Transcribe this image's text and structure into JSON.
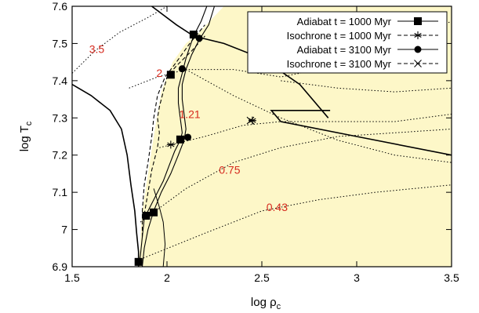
{
  "chart_data": {
    "type": "line",
    "xlabel": "log ρ",
    "xlabel_sub": "c",
    "ylabel": "log T",
    "ylabel_sub": "c",
    "xlim": [
      1.5,
      3.5
    ],
    "ylim": [
      6.9,
      7.6
    ],
    "xticks": [
      1.5,
      2,
      2.5,
      3,
      3.5
    ],
    "xtick_labels": [
      "1.5",
      "2",
      "2.5",
      "3",
      "3.5"
    ],
    "yticks": [
      6.9,
      7.0,
      7.1,
      7.2,
      7.3,
      7.4,
      7.5,
      7.6
    ],
    "ytick_labels": [
      "6.9",
      "7",
      "7.1",
      "7.2",
      "7.3",
      "7.4",
      "7.5",
      "7.6"
    ],
    "shaded_region_color": "#fdf7c8",
    "shaded_region": [
      [
        1.85,
        6.9
      ],
      [
        1.87,
        7.05
      ],
      [
        1.93,
        7.25
      ],
      [
        1.97,
        7.37
      ],
      [
        2.03,
        7.45
      ],
      [
        2.1,
        7.5
      ],
      [
        2.17,
        7.53
      ],
      [
        2.3,
        7.6
      ],
      [
        3.5,
        7.6
      ],
      [
        3.5,
        6.9
      ]
    ],
    "legend_position": "top-right",
    "series": [
      {
        "name": "Adiabat t = 1000 Myr",
        "style": "solid",
        "marker": "square",
        "line": [
          [
            1.85,
            6.9
          ],
          [
            1.86,
            6.93
          ],
          [
            1.87,
            6.98
          ],
          [
            1.88,
            7.03
          ],
          [
            1.9,
            7.05
          ],
          [
            1.94,
            7.09
          ],
          [
            1.98,
            7.13
          ],
          [
            2.01,
            7.17
          ],
          [
            2.04,
            7.21
          ],
          [
            2.07,
            7.24
          ],
          [
            2.08,
            7.26
          ],
          [
            2.07,
            7.3
          ],
          [
            2.06,
            7.34
          ],
          [
            2.06,
            7.38
          ],
          [
            2.08,
            7.42
          ],
          [
            2.1,
            7.46
          ],
          [
            2.12,
            7.49
          ],
          [
            2.14,
            7.52
          ],
          [
            2.18,
            7.56
          ],
          [
            2.21,
            7.6
          ]
        ],
        "markers": [
          [
            1.85,
            6.913
          ],
          [
            1.89,
            7.037
          ],
          [
            1.93,
            7.046
          ],
          [
            2.07,
            7.242
          ],
          [
            2.02,
            7.416
          ],
          [
            2.14,
            7.524
          ]
        ]
      },
      {
        "name": "Isochrone t = 1000 Myr",
        "style": "dashed",
        "marker": "asterisk",
        "line": [
          [
            1.88,
            7.04
          ],
          [
            1.9,
            7.1
          ],
          [
            1.92,
            7.16
          ],
          [
            1.95,
            7.22
          ],
          [
            1.96,
            7.26
          ],
          [
            1.95,
            7.3
          ],
          [
            1.96,
            7.33
          ],
          [
            1.98,
            7.37
          ],
          [
            2.0,
            7.41
          ],
          [
            2.05,
            7.44
          ],
          [
            2.13,
            7.48
          ],
          [
            2.2,
            7.52
          ]
        ],
        "markers": [
          [
            2.02,
            7.228
          ],
          [
            2.45,
            7.293
          ]
        ]
      },
      {
        "name": "Adiabat t = 3100 Myr",
        "style": "solid",
        "marker": "circle",
        "line": [
          [
            1.87,
            6.9
          ],
          [
            1.88,
            6.95
          ],
          [
            1.9,
            7.0
          ],
          [
            1.93,
            7.05
          ],
          [
            1.97,
            7.1
          ],
          [
            2.02,
            7.15
          ],
          [
            2.06,
            7.2
          ],
          [
            2.09,
            7.24
          ],
          [
            2.1,
            7.27
          ],
          [
            2.09,
            7.31
          ],
          [
            2.08,
            7.35
          ],
          [
            2.08,
            7.39
          ],
          [
            2.1,
            7.43
          ],
          [
            2.13,
            7.47
          ],
          [
            2.17,
            7.51
          ],
          [
            2.22,
            7.55
          ],
          [
            2.25,
            7.6
          ]
        ],
        "markers": [
          [
            2.11,
            7.248
          ],
          [
            2.08,
            7.432
          ],
          [
            2.17,
            7.514
          ]
        ]
      },
      {
        "name": "Isochrone t = 3100 Myr",
        "style": "dashed",
        "marker": "x",
        "line": [
          [
            1.87,
            6.98
          ],
          [
            1.87,
            7.05
          ],
          [
            1.88,
            7.12
          ],
          [
            1.9,
            7.18
          ],
          [
            1.92,
            7.25
          ],
          [
            1.93,
            7.3
          ],
          [
            1.95,
            7.36
          ],
          [
            1.99,
            7.41
          ],
          [
            2.05,
            7.45
          ],
          [
            2.12,
            7.5
          ],
          [
            2.2,
            7.55
          ]
        ],
        "markers": [
          [
            2.44,
            7.293
          ]
        ]
      }
    ],
    "boundary_curves": [
      [
        [
          1.5,
          7.39
        ],
        [
          1.6,
          7.36
        ],
        [
          1.7,
          7.32
        ],
        [
          1.76,
          7.27
        ],
        [
          1.79,
          7.2
        ],
        [
          1.81,
          7.12
        ],
        [
          1.83,
          7.05
        ],
        [
          1.84,
          6.99
        ],
        [
          1.85,
          6.94
        ],
        [
          1.85,
          6.9
        ]
      ],
      [
        [
          1.92,
          7.6
        ],
        [
          2.05,
          7.55
        ],
        [
          2.14,
          7.52
        ],
        [
          2.3,
          7.5
        ],
        [
          2.5,
          7.46
        ],
        [
          2.7,
          7.39
        ],
        [
          2.85,
          7.3
        ]
      ],
      [
        [
          2.86,
          7.32
        ],
        [
          2.55,
          7.32
        ],
        [
          2.6,
          7.29
        ],
        [
          3.0,
          7.25
        ],
        [
          3.5,
          7.2
        ]
      ],
      [
        [
          1.93,
          7.11
        ],
        [
          1.96,
          7.06
        ],
        [
          1.98,
          7.02
        ],
        [
          1.99,
          6.96
        ],
        [
          1.98,
          6.9
        ]
      ]
    ],
    "dotted_tracks": [
      {
        "label": "3.5",
        "points": [
          [
            1.5,
            7.42
          ],
          [
            1.62,
            7.48
          ],
          [
            1.75,
            7.53
          ],
          [
            1.9,
            7.57
          ],
          [
            2.0,
            7.6
          ]
        ]
      },
      {
        "label": "2",
        "points": [
          [
            1.8,
            7.38
          ],
          [
            1.95,
            7.41
          ],
          [
            2.1,
            7.43
          ],
          [
            2.35,
            7.43
          ],
          [
            2.6,
            7.41
          ],
          [
            2.9,
            7.44
          ],
          [
            3.2,
            7.49
          ],
          [
            3.5,
            7.56
          ]
        ]
      },
      {
        "label": "1.21",
        "points": [
          [
            1.96,
            7.22
          ],
          [
            2.2,
            7.25
          ],
          [
            2.4,
            7.28
          ],
          [
            2.6,
            7.29
          ],
          [
            2.9,
            7.29
          ],
          [
            3.2,
            7.29
          ],
          [
            3.5,
            7.31
          ]
        ]
      },
      {
        "label": "0.75",
        "points": [
          [
            1.86,
            7.02
          ],
          [
            2.1,
            7.11
          ],
          [
            2.35,
            7.18
          ],
          [
            2.6,
            7.22
          ],
          [
            2.9,
            7.25
          ],
          [
            3.2,
            7.26
          ],
          [
            3.5,
            7.27
          ]
        ]
      },
      {
        "label": "0.43",
        "points": [
          [
            1.86,
            6.92
          ],
          [
            2.2,
            6.99
          ],
          [
            2.5,
            7.05
          ],
          [
            2.8,
            7.08
          ],
          [
            3.1,
            7.1
          ],
          [
            3.5,
            7.12
          ]
        ]
      },
      {
        "label": "",
        "points": [
          [
            2.1,
            7.43
          ],
          [
            2.35,
            7.36
          ],
          [
            2.6,
            7.3
          ],
          [
            2.9,
            7.24
          ],
          [
            3.2,
            7.2
          ],
          [
            3.5,
            7.18
          ]
        ]
      },
      {
        "label": "",
        "points": [
          [
            2.6,
            7.4
          ],
          [
            2.9,
            7.38
          ],
          [
            3.2,
            7.37
          ],
          [
            3.5,
            7.38
          ]
        ]
      }
    ],
    "curve_label_color": "#d62a1e"
  }
}
